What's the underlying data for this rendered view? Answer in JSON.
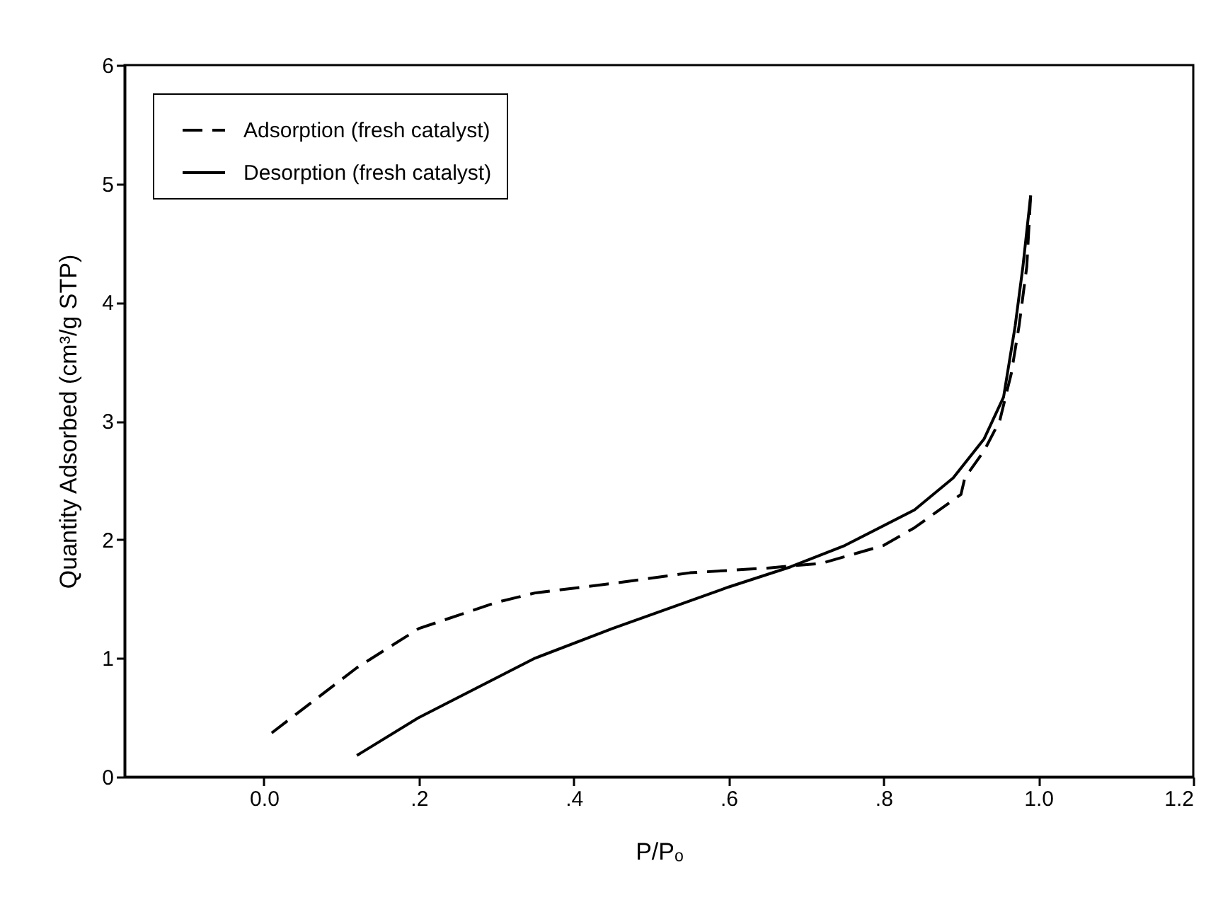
{
  "chart_data": {
    "type": "line",
    "xlabel": "P/Pₒ",
    "ylabel": "Quantity Adsorbed (cm³/g STP)",
    "xlim": [
      -0.18,
      1.2
    ],
    "ylim": [
      0,
      6
    ],
    "xticks": [
      {
        "value": 0,
        "label": "0.0"
      },
      {
        "value": 0.2,
        "label": ".2"
      },
      {
        "value": 0.4,
        "label": ".4"
      },
      {
        "value": 0.6,
        "label": ".6"
      },
      {
        "value": 0.8,
        "label": ".8"
      },
      {
        "value": 1,
        "label": "1.0"
      },
      {
        "value": 1.2,
        "label": "1.2"
      }
    ],
    "yticks": [
      0,
      1,
      2,
      3,
      4,
      5,
      6
    ],
    "grid": false,
    "legend": "top left",
    "marker": "none",
    "series": [
      {
        "name": "Adsorption (fresh catalyst)",
        "color": "#000000",
        "line_style": "dashed",
        "x": [
          0.01,
          0.12,
          0.2,
          0.3,
          0.35,
          0.45,
          0.55,
          0.65,
          0.72,
          0.8,
          0.84,
          0.9,
          0.905,
          0.93,
          0.95,
          0.965,
          0.975,
          0.985,
          0.99
        ],
        "values": [
          0.37,
          0.92,
          1.25,
          1.47,
          1.55,
          1.63,
          1.72,
          1.76,
          1.8,
          1.95,
          2.1,
          2.38,
          2.52,
          2.75,
          3.0,
          3.4,
          3.8,
          4.3,
          4.9
        ]
      },
      {
        "name": "Desorption (fresh catalyst)",
        "color": "#000000",
        "line_style": "solid",
        "x": [
          0.12,
          0.2,
          0.35,
          0.45,
          0.6,
          0.68,
          0.75,
          0.84,
          0.89,
          0.93,
          0.955,
          0.97,
          0.98,
          0.99
        ],
        "values": [
          0.18,
          0.5,
          1.0,
          1.25,
          1.6,
          1.77,
          1.95,
          2.25,
          2.52,
          2.85,
          3.2,
          3.8,
          4.3,
          4.9
        ]
      }
    ]
  }
}
